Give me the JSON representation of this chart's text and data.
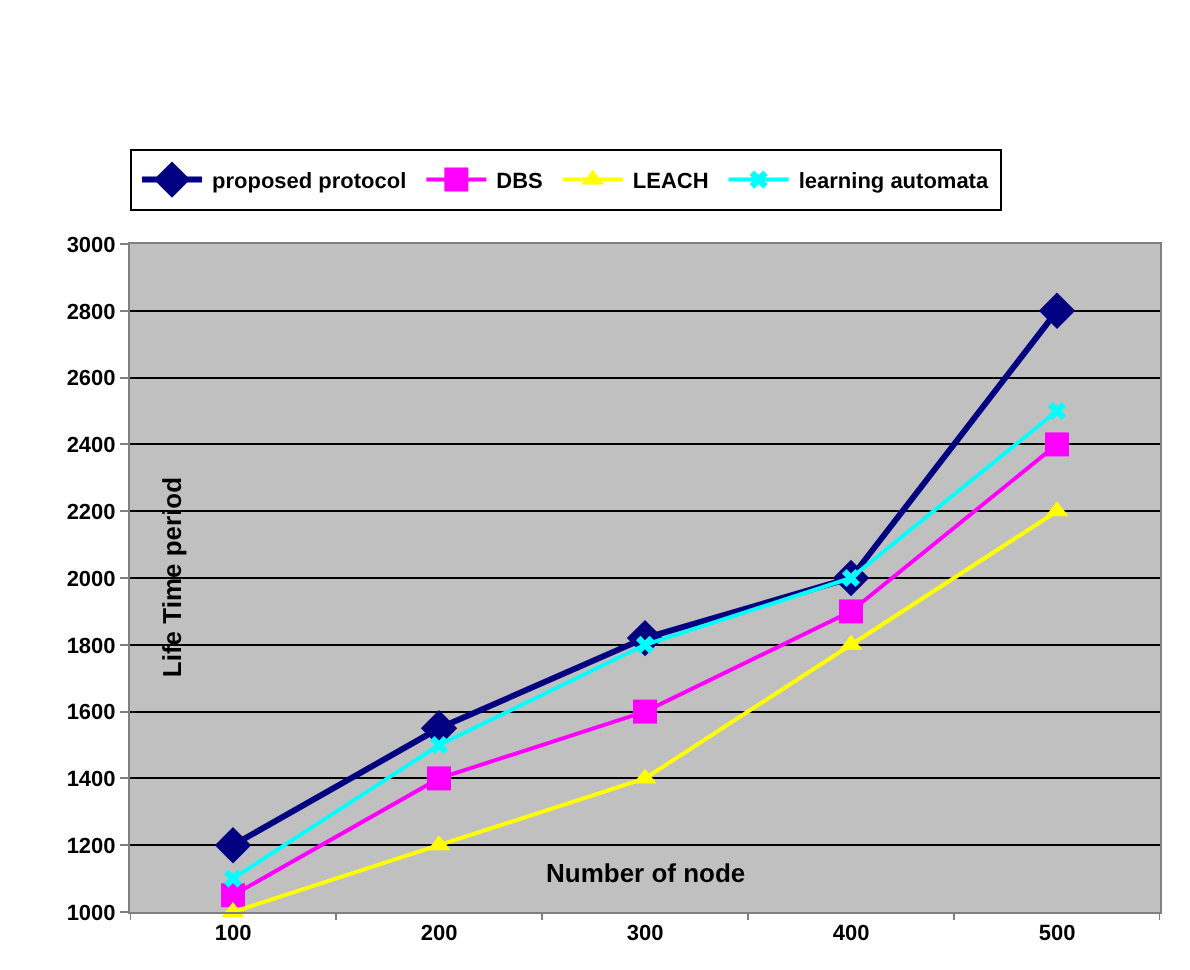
{
  "chart_data": {
    "type": "line",
    "xlabel": "Number of node",
    "ylabel": "Life Time period",
    "categories": [
      "100",
      "200",
      "300",
      "400",
      "500"
    ],
    "series": [
      {
        "name": "proposed protocol",
        "color": "#000080",
        "marker": "diamond",
        "values": [
          1200,
          1550,
          1820,
          2000,
          2800
        ]
      },
      {
        "name": "DBS",
        "color": "#ff00ff",
        "marker": "square",
        "values": [
          1050,
          1400,
          1600,
          1900,
          2400
        ]
      },
      {
        "name": "LEACH",
        "color": "#ffff00",
        "marker": "triangle",
        "values": [
          1000,
          1200,
          1400,
          1800,
          2200
        ]
      },
      {
        "name": "learning automata",
        "color": "#00ffff",
        "marker": "cross",
        "values": [
          1100,
          1500,
          1800,
          2000,
          2500
        ]
      }
    ],
    "ylim": [
      1000,
      3000
    ],
    "yticks": [
      1000,
      1200,
      1400,
      1600,
      1800,
      2000,
      2200,
      2400,
      2600,
      2800,
      3000
    ],
    "grid": "y",
    "legend": "top",
    "line_style": "solid"
  }
}
